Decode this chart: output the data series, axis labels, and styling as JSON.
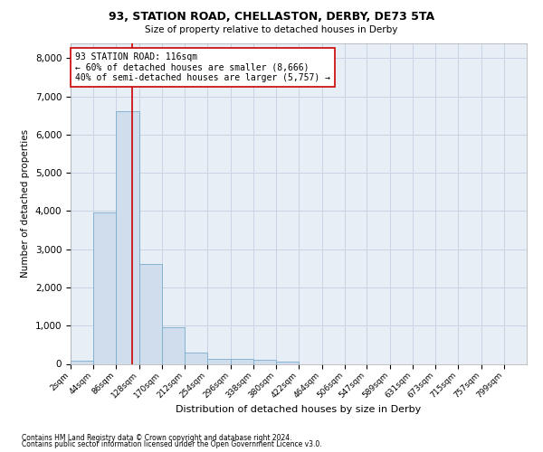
{
  "title": "93, STATION ROAD, CHELLASTON, DERBY, DE73 5TA",
  "subtitle": "Size of property relative to detached houses in Derby",
  "xlabel": "Distribution of detached houses by size in Derby",
  "ylabel": "Number of detached properties",
  "footnote1": "Contains HM Land Registry data © Crown copyright and database right 2024.",
  "footnote2": "Contains public sector information licensed under the Open Government Licence v3.0.",
  "bar_color": "#cfdded",
  "bar_edge_color": "#7aaccc",
  "grid_color": "#c8d4e4",
  "background_color": "#e8eef6",
  "property_line_color": "#cc0000",
  "property_size": 116,
  "annotation_line1": "93 STATION ROAD: 116sqm",
  "annotation_line2": "← 60% of detached houses are smaller (8,666)",
  "annotation_line3": "40% of semi-detached houses are larger (5,757) →",
  "annotation_box_color": "#ffffff",
  "annotation_box_edge_color": "#cc0000",
  "bin_edges": [
    2,
    44,
    86,
    128,
    170,
    212,
    254,
    296,
    338,
    380,
    422,
    464,
    506,
    547,
    589,
    631,
    673,
    715,
    757,
    799,
    841
  ],
  "bin_counts": [
    80,
    3970,
    6620,
    2620,
    960,
    300,
    130,
    120,
    100,
    60,
    0,
    0,
    0,
    0,
    0,
    0,
    0,
    0,
    0,
    0
  ],
  "ylim": [
    0,
    8400
  ],
  "yticks": [
    0,
    1000,
    2000,
    3000,
    4000,
    5000,
    6000,
    7000,
    8000
  ]
}
